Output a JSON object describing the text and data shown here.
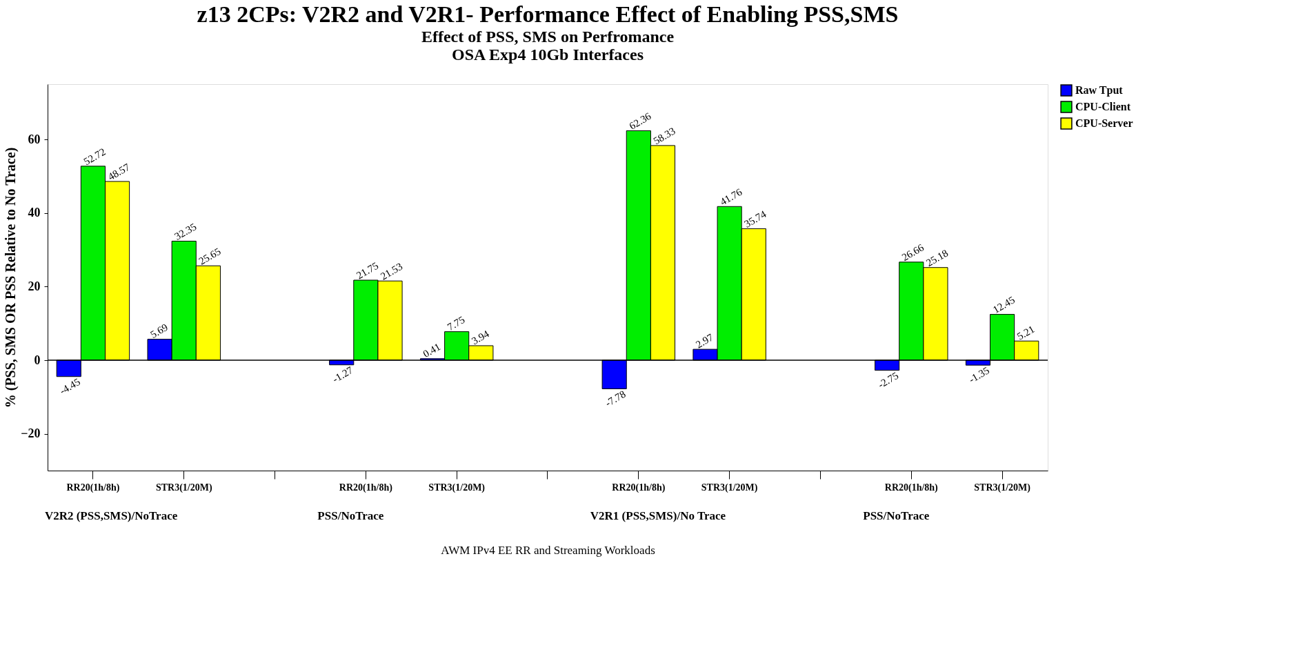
{
  "chart_data": {
    "type": "bar",
    "title": "z13 2CPs: V2R2 and V2R1- Performance Effect of Enabling PSS,SMS",
    "subtitle": "Effect of PSS, SMS on Perfromance\nOSA Exp4 10Gb Interfaces",
    "xlabel": "AWM IPv4 EE RR and Streaming Workloads",
    "ylabel": "% (PSS, SMS OR PSS Relative to No Trace)",
    "categories": [
      "RR20(1h/8h)",
      "STR3(1/20M)",
      null,
      "RR20(1h/8h)",
      "STR3(1/20M)",
      null,
      "RR20(1h/8h)",
      "STR3(1/20M)",
      null,
      "RR20(1h/8h)",
      "STR3(1/20M)"
    ],
    "annotations": [
      "V2R2 (PSS,SMS)/NoTrace",
      "PSS/NoTrace",
      "V2R1 (PSS,SMS)/No Trace",
      "PSS/NoTrace"
    ],
    "series": [
      {
        "name": "Raw Tput",
        "color": "#0000ff",
        "values": [
          -4.45,
          5.69,
          null,
          -1.27,
          0.41,
          null,
          -7.78,
          2.97,
          null,
          -2.75,
          -1.35
        ]
      },
      {
        "name": "CPU-Client",
        "color": "#00ee00",
        "values": [
          52.72,
          32.35,
          null,
          21.75,
          7.75,
          null,
          62.36,
          41.76,
          null,
          26.66,
          12.45
        ]
      },
      {
        "name": "CPU-Server",
        "color": "#ffff00",
        "values": [
          48.57,
          25.65,
          null,
          21.53,
          3.94,
          null,
          58.33,
          35.74,
          null,
          25.18,
          5.21
        ]
      }
    ],
    "ylim": [
      -30,
      75
    ],
    "yticks": [
      -20,
      0,
      20,
      40,
      60
    ],
    "ref_lines": [
      {
        "axis": "y",
        "value": 0,
        "color": "#000000"
      }
    ],
    "data_labels": true,
    "grid": false,
    "legend": "right"
  }
}
